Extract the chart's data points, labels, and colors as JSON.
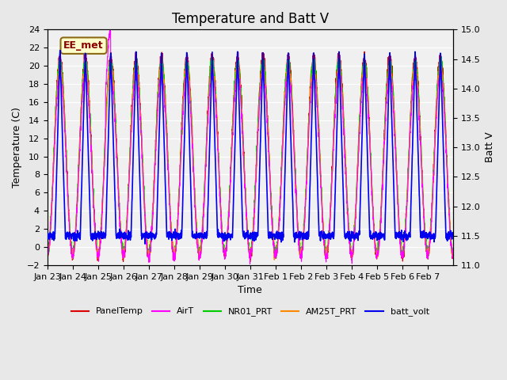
{
  "title": "Temperature and Batt V",
  "xlabel": "Time",
  "ylabel_left": "Temperature (C)",
  "ylabel_right": "Batt V",
  "ylim_left": [
    -2,
    24
  ],
  "ylim_right": [
    11.0,
    15.0
  ],
  "yticks_left": [
    -2,
    0,
    2,
    4,
    6,
    8,
    10,
    12,
    14,
    16,
    18,
    20,
    22,
    24
  ],
  "yticks_right": [
    11.0,
    11.5,
    12.0,
    12.5,
    13.0,
    13.5,
    14.0,
    14.5,
    15.0
  ],
  "xtick_labels": [
    "Jan 23",
    "Jan 24",
    "Jan 25",
    "Jan 26",
    "Jan 27",
    "Jan 28",
    "Jan 29",
    "Jan 30",
    "Jan 31",
    "Feb 1",
    "Feb 2",
    "Feb 3",
    "Feb 4",
    "Feb 5",
    "Feb 6",
    "Feb 7"
  ],
  "xtick_positions": [
    0,
    1,
    2,
    3,
    4,
    5,
    6,
    7,
    8,
    9,
    10,
    11,
    12,
    13,
    14,
    15
  ],
  "annotation_text": "EE_met",
  "annotation_bbox_facecolor": "#ffffcc",
  "annotation_bbox_edgecolor": "#8b6914",
  "series_colors": {
    "PanelTemp": "#dd0000",
    "AirT": "#ff00ff",
    "NR01_PRT": "#00cc00",
    "AM25T_PRT": "#ff8800",
    "batt_volt": "#0000ee"
  },
  "legend_labels": [
    "PanelTemp",
    "AirT",
    "NR01_PRT",
    "AM25T_PRT",
    "batt_volt"
  ],
  "bg_color": "#e8e8e8",
  "plot_bg_color": "#f0f0f0",
  "grid_color": "#ffffff",
  "title_fontsize": 12,
  "axis_fontsize": 9,
  "tick_fontsize": 8
}
